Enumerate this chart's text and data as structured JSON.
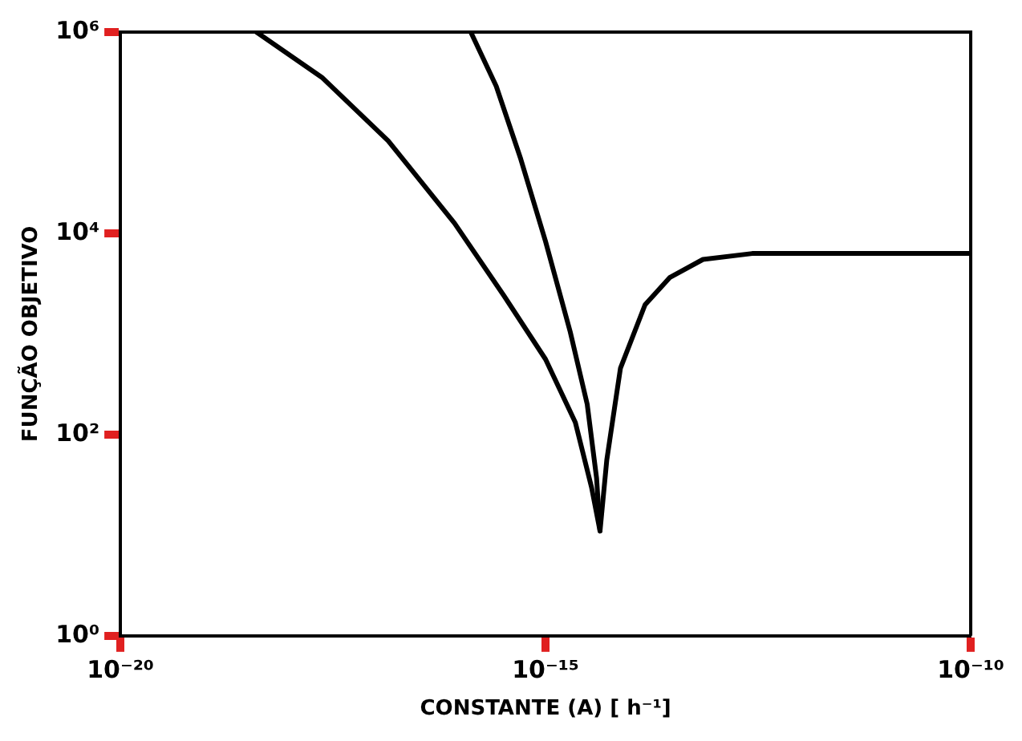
{
  "chart_data": {
    "type": "line",
    "xlabel": "CONSTANTE (A) [ h⁻¹]",
    "ylabel": "FUNÇÃO OBJETIVO",
    "log": "xy",
    "grid": false,
    "legend": false,
    "marker": "none",
    "line_style": "solid",
    "xlim": [
      1e-20,
      1e-10
    ],
    "ylim": [
      1,
      1000000
    ],
    "xticks": [
      {
        "value": 1e-20,
        "label": "10⁻²⁰"
      },
      {
        "value": 1e-15,
        "label": "10⁻¹⁵"
      },
      {
        "value": 1e-10,
        "label": "10⁻¹⁰"
      }
    ],
    "yticks": [
      {
        "value": 1,
        "label": "10⁰"
      },
      {
        "value": 100,
        "label": "10²"
      },
      {
        "value": 10000,
        "label": "10⁴"
      },
      {
        "value": 1000000,
        "label": "10⁶"
      }
    ],
    "series": [
      {
        "color": "#000000",
        "x": [
          3.98e-19,
          2.34e-18,
          1.41e-17,
          8.5e-17,
          3.24e-16,
          1e-15,
          2.24e-15,
          3.47e-15,
          4.37e-15,
          5.25e-15,
          7.6e-15,
          1.48e-14,
          2.88e-14,
          7.1e-14,
          2.69e-13,
          2.5e-12,
          1e-10
        ],
        "values": [
          1000000,
          355000,
          83000,
          12600,
          2400,
          560,
          132,
          30,
          11,
          56,
          457,
          1950,
          3630,
          5500,
          6300,
          6300,
          6300
        ]
      },
      {
        "color": "#000000",
        "x": [
          1.32e-16,
          2.63e-16,
          5.1e-16,
          1e-15,
          1.95e-15,
          3.09e-15,
          3.98e-15,
          4.37e-15
        ],
        "values": [
          1000000,
          290000,
          55000,
          8300,
          1050,
          200,
          37,
          11
        ]
      }
    ]
  }
}
